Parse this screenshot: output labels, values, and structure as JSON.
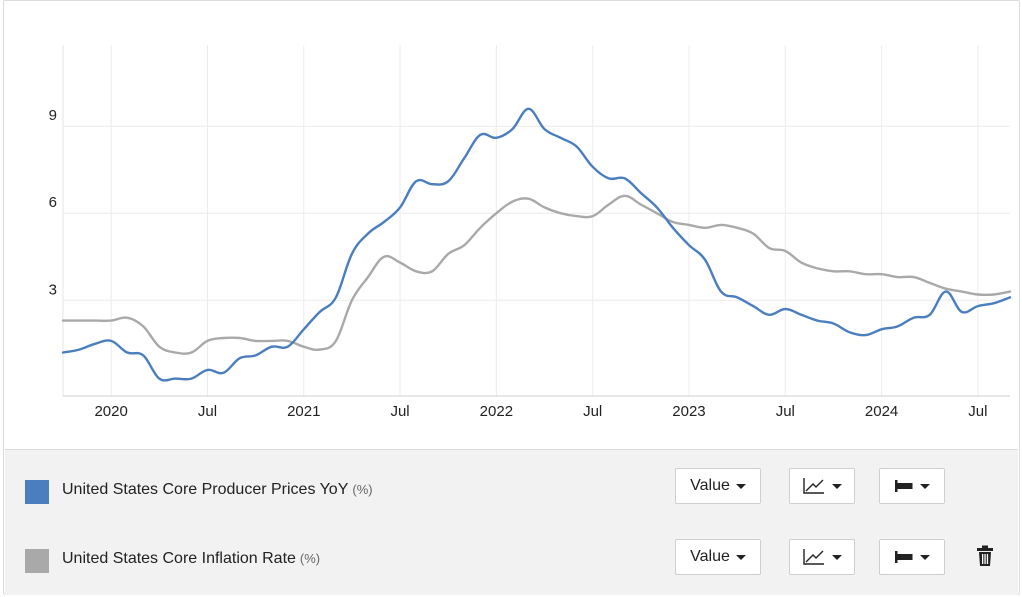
{
  "chart_data": {
    "type": "line",
    "x_ticks": [
      "2020",
      "Jul",
      "2021",
      "Jul",
      "2022",
      "Jul",
      "2023",
      "Jul",
      "2024",
      "Jul"
    ],
    "y_ticks": [
      "3",
      "6",
      "9"
    ],
    "ylim": [
      -0.3,
      11.8
    ],
    "xlim": [
      "2019-10",
      "2024-09"
    ],
    "grid": true,
    "series": [
      {
        "name": "United States Core Producer Prices YoY",
        "unit": "(%)",
        "color": "#4a7ebf",
        "points": [
          [
            "2019-10",
            1.2
          ],
          [
            "2019-11",
            1.3
          ],
          [
            "2019-12",
            1.5
          ],
          [
            "2020-01",
            1.6
          ],
          [
            "2020-02",
            1.2
          ],
          [
            "2020-03",
            1.1
          ],
          [
            "2020-04",
            0.3
          ],
          [
            "2020-05",
            0.3
          ],
          [
            "2020-06",
            0.3
          ],
          [
            "2020-07",
            0.6
          ],
          [
            "2020-08",
            0.5
          ],
          [
            "2020-09",
            1.0
          ],
          [
            "2020-10",
            1.1
          ],
          [
            "2020-11",
            1.4
          ],
          [
            "2020-12",
            1.4
          ],
          [
            "2021-01",
            2.0
          ],
          [
            "2021-02",
            2.6
          ],
          [
            "2021-03",
            3.1
          ],
          [
            "2021-04",
            4.6
          ],
          [
            "2021-05",
            5.3
          ],
          [
            "2021-06",
            5.7
          ],
          [
            "2021-07",
            6.2
          ],
          [
            "2021-08",
            7.1
          ],
          [
            "2021-09",
            7.0
          ],
          [
            "2021-10",
            7.1
          ],
          [
            "2021-11",
            7.9
          ],
          [
            "2021-12",
            8.7
          ],
          [
            "2022-01",
            8.6
          ],
          [
            "2022-02",
            8.9
          ],
          [
            "2022-03",
            9.6
          ],
          [
            "2022-04",
            8.9
          ],
          [
            "2022-05",
            8.6
          ],
          [
            "2022-06",
            8.3
          ],
          [
            "2022-07",
            7.6
          ],
          [
            "2022-08",
            7.2
          ],
          [
            "2022-09",
            7.2
          ],
          [
            "2022-10",
            6.7
          ],
          [
            "2022-11",
            6.2
          ],
          [
            "2022-12",
            5.5
          ],
          [
            "2023-01",
            4.9
          ],
          [
            "2023-02",
            4.4
          ],
          [
            "2023-03",
            3.3
          ],
          [
            "2023-04",
            3.1
          ],
          [
            "2023-05",
            2.8
          ],
          [
            "2023-06",
            2.5
          ],
          [
            "2023-07",
            2.7
          ],
          [
            "2023-08",
            2.5
          ],
          [
            "2023-09",
            2.3
          ],
          [
            "2023-10",
            2.2
          ],
          [
            "2023-11",
            1.9
          ],
          [
            "2023-12",
            1.8
          ],
          [
            "2024-01",
            2.0
          ],
          [
            "2024-02",
            2.1
          ],
          [
            "2024-03",
            2.4
          ],
          [
            "2024-04",
            2.5
          ],
          [
            "2024-05",
            3.3
          ],
          [
            "2024-06",
            2.6
          ],
          [
            "2024-07",
            2.8
          ],
          [
            "2024-08",
            2.9
          ],
          [
            "2024-09",
            3.1
          ]
        ]
      },
      {
        "name": "United States Core Inflation Rate",
        "unit": "(%)",
        "color": "#a9a9a9",
        "points": [
          [
            "2019-10",
            2.3
          ],
          [
            "2019-11",
            2.3
          ],
          [
            "2019-12",
            2.3
          ],
          [
            "2020-01",
            2.3
          ],
          [
            "2020-02",
            2.4
          ],
          [
            "2020-03",
            2.1
          ],
          [
            "2020-04",
            1.4
          ],
          [
            "2020-05",
            1.2
          ],
          [
            "2020-06",
            1.2
          ],
          [
            "2020-07",
            1.6
          ],
          [
            "2020-08",
            1.7
          ],
          [
            "2020-09",
            1.7
          ],
          [
            "2020-10",
            1.6
          ],
          [
            "2020-11",
            1.6
          ],
          [
            "2020-12",
            1.6
          ],
          [
            "2021-01",
            1.4
          ],
          [
            "2021-02",
            1.3
          ],
          [
            "2021-03",
            1.6
          ],
          [
            "2021-04",
            3.0
          ],
          [
            "2021-05",
            3.8
          ],
          [
            "2021-06",
            4.5
          ],
          [
            "2021-07",
            4.3
          ],
          [
            "2021-08",
            4.0
          ],
          [
            "2021-09",
            4.0
          ],
          [
            "2021-10",
            4.6
          ],
          [
            "2021-11",
            4.9
          ],
          [
            "2021-12",
            5.5
          ],
          [
            "2022-01",
            6.0
          ],
          [
            "2022-02",
            6.4
          ],
          [
            "2022-03",
            6.5
          ],
          [
            "2022-04",
            6.2
          ],
          [
            "2022-05",
            6.0
          ],
          [
            "2022-06",
            5.9
          ],
          [
            "2022-07",
            5.9
          ],
          [
            "2022-08",
            6.3
          ],
          [
            "2022-09",
            6.6
          ],
          [
            "2022-10",
            6.3
          ],
          [
            "2022-11",
            6.0
          ],
          [
            "2022-12",
            5.7
          ],
          [
            "2023-01",
            5.6
          ],
          [
            "2023-02",
            5.5
          ],
          [
            "2023-03",
            5.6
          ],
          [
            "2023-04",
            5.5
          ],
          [
            "2023-05",
            5.3
          ],
          [
            "2023-06",
            4.8
          ],
          [
            "2023-07",
            4.7
          ],
          [
            "2023-08",
            4.3
          ],
          [
            "2023-09",
            4.1
          ],
          [
            "2023-10",
            4.0
          ],
          [
            "2023-11",
            4.0
          ],
          [
            "2023-12",
            3.9
          ],
          [
            "2024-01",
            3.9
          ],
          [
            "2024-02",
            3.8
          ],
          [
            "2024-03",
            3.8
          ],
          [
            "2024-04",
            3.6
          ],
          [
            "2024-05",
            3.4
          ],
          [
            "2024-06",
            3.3
          ],
          [
            "2024-07",
            3.2
          ],
          [
            "2024-08",
            3.2
          ],
          [
            "2024-09",
            3.3
          ]
        ]
      }
    ]
  },
  "legend": {
    "rows": [
      {
        "label": "United States Core Producer Prices YoY",
        "unit": "(%)",
        "color": "#4a7ebf",
        "value_button": "Value",
        "chart_type_icon": "line-chart-icon",
        "style_icon": "bar-style-icon",
        "show_delete": false
      },
      {
        "label": "United States Core Inflation Rate",
        "unit": "(%)",
        "color": "#a9a9a9",
        "value_button": "Value",
        "chart_type_icon": "line-chart-icon",
        "style_icon": "bar-style-icon",
        "show_delete": true,
        "delete_icon": "trash-icon"
      }
    ]
  }
}
